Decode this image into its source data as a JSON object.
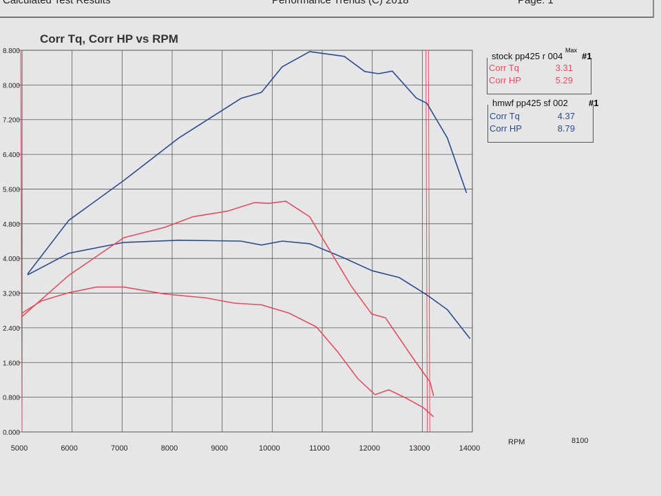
{
  "header": {
    "left": "Calculated Test Results",
    "center": "Performance Trends (C) 2018",
    "right": "Page: 1"
  },
  "colors": {
    "stock": "#e0505a",
    "hmwf": "#2a4a8a",
    "grid": "#555555"
  },
  "legend": {
    "max_label": "Max",
    "runs": [
      {
        "name": "stock pp425 r 004",
        "num": "#1",
        "color": "#e0505a",
        "rows": [
          {
            "label": "Corr Tq",
            "value": "3.31"
          },
          {
            "label": "Corr HP",
            "value": "5.29"
          }
        ]
      },
      {
        "name": "hmwf pp425 sf 002",
        "num": "#1",
        "color": "#2a4a8a",
        "rows": [
          {
            "label": "Corr Tq",
            "value": "4.37"
          },
          {
            "label": "Corr HP",
            "value": "8.79"
          }
        ]
      }
    ]
  },
  "extra_label": "8100",
  "chart_data": {
    "type": "line",
    "title": "Corr Tq, Corr HP vs RPM",
    "xlabel": "RPM",
    "ylabel": "",
    "xlim": [
      5000,
      14000
    ],
    "ylim": [
      0,
      8.8
    ],
    "xticks": [
      5000,
      6000,
      7000,
      8000,
      9000,
      10000,
      11000,
      12000,
      13000,
      14000
    ],
    "yticks": [
      "8.800",
      "8.000",
      "7.200",
      "6.400",
      "5.600",
      "4.800",
      "4.000",
      "3.200",
      "2.400",
      "1.600",
      "0.800",
      "0.000"
    ],
    "grid": true,
    "markers_rpm": [
      5000,
      13100,
      13150
    ],
    "series": [
      {
        "name": "hmwf pp425 sf 002 Corr HP",
        "color": "#2a4a8a",
        "x": [
          5110,
          5935,
          7035,
          8135,
          9375,
          9785,
          10200,
          10750,
          11440,
          11850,
          12125,
          12400,
          12880,
          13090,
          13500,
          13885
        ],
        "y": [
          3.64,
          4.88,
          5.8,
          6.78,
          7.69,
          7.83,
          8.42,
          8.77,
          8.66,
          8.31,
          8.26,
          8.32,
          7.7,
          7.58,
          6.78,
          5.51
        ]
      },
      {
        "name": "hmwf pp425 sf 002 Corr Tq",
        "color": "#2a4a8a",
        "x": [
          5110,
          5935,
          7035,
          8135,
          9375,
          9785,
          10200,
          10750,
          11440,
          11990,
          12540,
          13090,
          13500,
          13955
        ],
        "y": [
          3.62,
          4.12,
          4.37,
          4.42,
          4.4,
          4.31,
          4.4,
          4.34,
          4.01,
          3.72,
          3.56,
          3.16,
          2.82,
          2.15
        ]
      },
      {
        "name": "stock pp425 r 004 Corr HP",
        "color": "#e0505a",
        "x": [
          5000,
          5935,
          7035,
          7860,
          8410,
          9100,
          9650,
          9925,
          10270,
          10750,
          11160,
          11575,
          11990,
          12265,
          12815,
          13155,
          13225
        ],
        "y": [
          2.66,
          3.61,
          4.48,
          4.72,
          4.96,
          5.09,
          5.29,
          5.27,
          5.32,
          4.96,
          4.17,
          3.37,
          2.72,
          2.63,
          1.7,
          1.15,
          0.83
        ]
      },
      {
        "name": "stock pp425 r 004 Corr Tq",
        "color": "#e0505a",
        "x": [
          5000,
          5385,
          5935,
          6485,
          7035,
          7860,
          8685,
          9235,
          9785,
          10335,
          10885,
          11300,
          11710,
          12055,
          12330,
          12675,
          13020,
          13225
        ],
        "y": [
          2.74,
          3.02,
          3.21,
          3.34,
          3.34,
          3.18,
          3.09,
          2.97,
          2.93,
          2.74,
          2.42,
          1.86,
          1.23,
          0.86,
          0.97,
          0.78,
          0.56,
          0.35
        ]
      }
    ]
  }
}
